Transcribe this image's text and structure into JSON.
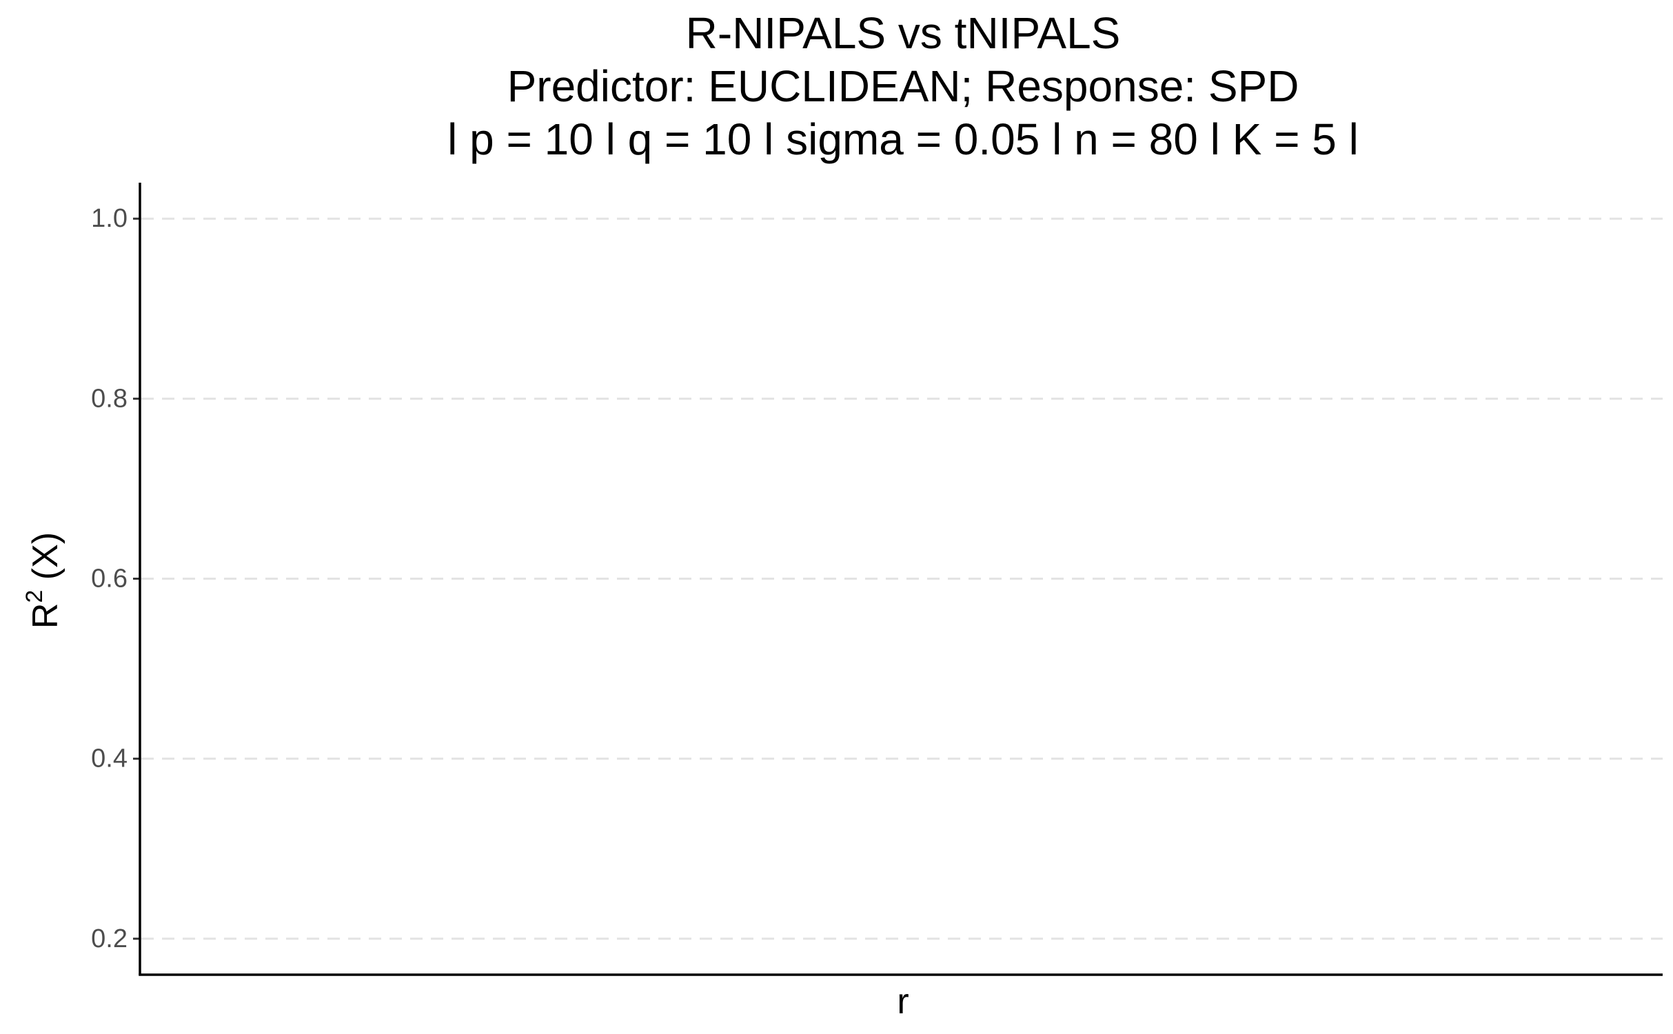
{
  "chart_data": {
    "type": "line",
    "title": "R-NIPALS vs tNIPALS",
    "subtitle_lines": [
      "Predictor: EUCLIDEAN; Response: SPD",
      "l p = 10 l q = 10 l sigma = 0.05 l n = 80 l K = 5 l"
    ],
    "xlabel": "r",
    "ylabel": {
      "base": "R",
      "superscript": "2",
      "suffix": " (X)"
    },
    "ylim": [
      0.16,
      1.04
    ],
    "yticks": [
      0.2,
      0.4,
      0.6,
      0.8,
      1.0
    ],
    "ytick_labels": [
      "0.2",
      "0.4",
      "0.6",
      "0.8",
      "1.0"
    ],
    "xticks": [],
    "series": [],
    "grid": "horizontal major, dashed",
    "legend": "none"
  },
  "colors": {
    "background": "#ffffff",
    "grid": "#e3e3e3",
    "axis": "#000000",
    "tick_label": "#4d4d4d",
    "text": "#000000"
  }
}
